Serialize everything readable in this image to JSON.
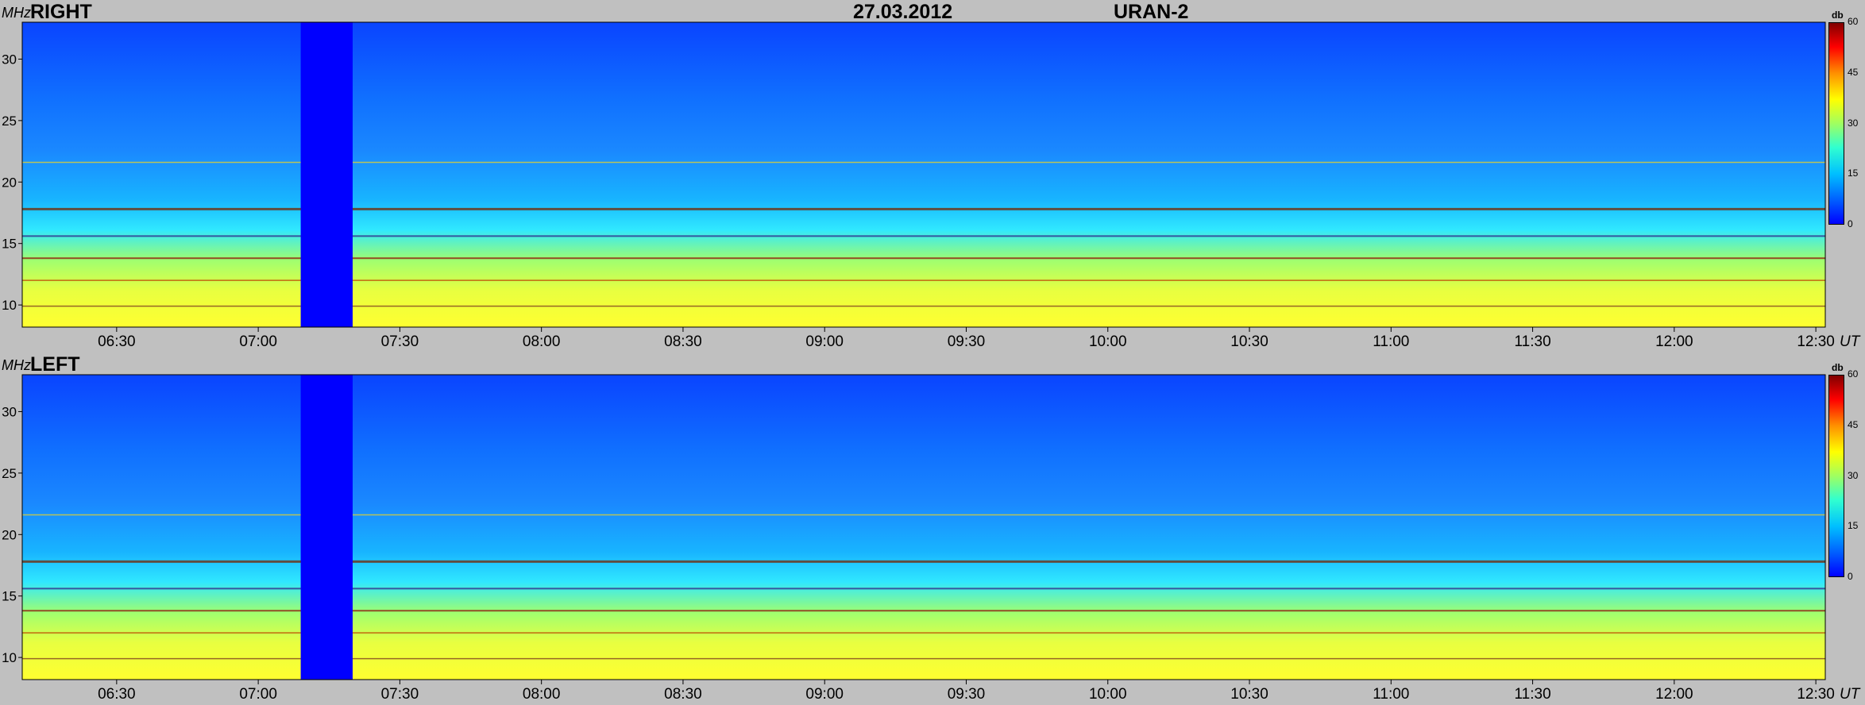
{
  "header": {
    "date": "27.03.2012",
    "instrument": "URAN-2"
  },
  "chart_data": [
    {
      "type": "heatmap",
      "title": "RIGHT",
      "ylabel": "MHz",
      "xlabel": "UT",
      "x_ticks": [
        "06:30",
        "07:00",
        "07:30",
        "08:00",
        "08:30",
        "09:00",
        "09:30",
        "10:00",
        "10:30",
        "11:00",
        "11:30",
        "12:00",
        "12:30"
      ],
      "y_ticks": [
        "10",
        "15",
        "20",
        "25",
        "30"
      ],
      "x_range": [
        "06:10",
        "12:32"
      ],
      "y_range": [
        8.2,
        33
      ],
      "colorbar": {
        "label": "db",
        "ticks": [
          "0",
          "15",
          "30",
          "45",
          "60"
        ],
        "range": [
          0,
          60
        ]
      },
      "data_gap": [
        "07:09",
        "07:20"
      ]
    },
    {
      "type": "heatmap",
      "title": "LEFT",
      "ylabel": "MHz",
      "xlabel": "UT",
      "x_ticks": [
        "06:30",
        "07:00",
        "07:30",
        "08:00",
        "08:30",
        "09:00",
        "09:30",
        "10:00",
        "10:30",
        "11:00",
        "11:30",
        "12:00",
        "12:30"
      ],
      "y_ticks": [
        "10",
        "15",
        "20",
        "25",
        "30"
      ],
      "x_range": [
        "06:10",
        "12:32"
      ],
      "y_range": [
        8.2,
        33
      ],
      "colorbar": {
        "label": "db",
        "ticks": [
          "0",
          "15",
          "30",
          "45",
          "60"
        ],
        "range": [
          0,
          60
        ]
      },
      "data_gap": [
        "07:09",
        "07:20"
      ]
    }
  ]
}
